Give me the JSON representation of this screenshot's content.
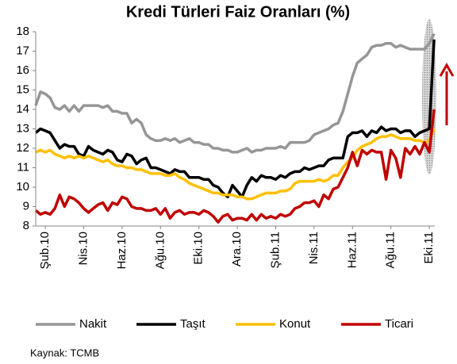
{
  "chart_data": {
    "type": "line",
    "title": "Kredi Türleri Faiz Oranları (%)",
    "source": "Kaynak: TCMB",
    "categories": [
      null,
      null,
      "Şub.10",
      null,
      null,
      null,
      null,
      null,
      null,
      null,
      "Nis.10",
      null,
      null,
      null,
      null,
      null,
      null,
      null,
      "Haz.10",
      null,
      null,
      null,
      null,
      null,
      null,
      null,
      "Ağu.10",
      null,
      null,
      null,
      null,
      null,
      null,
      null,
      "Eki.10",
      null,
      null,
      null,
      null,
      null,
      null,
      null,
      "Ara.10",
      null,
      null,
      null,
      null,
      null,
      null,
      null,
      "Şub.11",
      null,
      null,
      null,
      null,
      null,
      null,
      null,
      "Nis.11",
      null,
      null,
      null,
      null,
      null,
      null,
      null,
      "Haz.11",
      null,
      null,
      null,
      null,
      null,
      null,
      null,
      "Ağu.11",
      null,
      null,
      null,
      null,
      null,
      null,
      null,
      "Eki.11",
      null
    ],
    "series": [
      {
        "name": "Nakit",
        "color": "#969696",
        "values": [
          14.2,
          14.9,
          14.8,
          14.6,
          14.1,
          14.0,
          14.2,
          13.9,
          14.2,
          13.9,
          14.2,
          14.2,
          14.2,
          14.2,
          14.1,
          14.2,
          13.9,
          13.9,
          13.8,
          13.8,
          13.3,
          13.5,
          13.3,
          12.7,
          12.5,
          12.4,
          12.4,
          12.5,
          12.4,
          12.5,
          12.3,
          12.4,
          12.5,
          12.3,
          12.3,
          12.2,
          12.2,
          12.0,
          12.0,
          11.9,
          11.9,
          11.8,
          11.8,
          11.9,
          12.0,
          11.8,
          11.9,
          11.9,
          12.0,
          12.0,
          12.0,
          12.1,
          12.0,
          12.3,
          12.3,
          12.3,
          12.3,
          12.4,
          12.7,
          12.8,
          12.9,
          13.0,
          13.2,
          13.3,
          13.9,
          14.8,
          15.7,
          16.4,
          16.6,
          16.8,
          17.2,
          17.3,
          17.3,
          17.4,
          17.4,
          17.2,
          17.3,
          17.2,
          17.1,
          17.1,
          17.1,
          17.1,
          17.4,
          17.9
        ]
      },
      {
        "name": "Taşıt",
        "color": "#000000",
        "values": [
          12.8,
          13.0,
          12.9,
          12.8,
          12.4,
          12.0,
          12.2,
          12.1,
          12.1,
          11.7,
          11.6,
          12.1,
          11.9,
          11.8,
          11.7,
          11.9,
          11.8,
          11.4,
          11.3,
          11.7,
          11.6,
          11.2,
          11.4,
          11.5,
          11.0,
          11.0,
          10.9,
          10.8,
          10.7,
          10.9,
          10.8,
          10.8,
          10.5,
          10.5,
          10.5,
          10.4,
          10.4,
          10.1,
          10.0,
          9.7,
          9.5,
          10.1,
          9.8,
          9.5,
          10.1,
          10.5,
          10.3,
          10.6,
          10.5,
          10.5,
          10.4,
          10.6,
          10.5,
          10.7,
          10.8,
          10.8,
          11.0,
          10.9,
          11.0,
          11.1,
          11.1,
          11.4,
          11.5,
          11.5,
          11.5,
          12.6,
          12.8,
          12.8,
          12.9,
          12.6,
          12.9,
          12.8,
          13.1,
          12.9,
          13.0,
          13.0,
          12.8,
          12.9,
          12.9,
          12.6,
          12.8,
          12.9,
          13.0,
          17.6
        ]
      },
      {
        "name": "Konut",
        "color": "#ffc000",
        "values": [
          11.8,
          11.9,
          11.8,
          11.9,
          11.7,
          11.6,
          11.5,
          11.6,
          11.5,
          11.6,
          11.5,
          11.6,
          11.5,
          11.4,
          11.3,
          11.4,
          11.2,
          11.1,
          11.1,
          11.0,
          11.0,
          10.9,
          10.9,
          10.8,
          10.7,
          10.7,
          10.7,
          10.6,
          10.6,
          10.7,
          10.5,
          10.4,
          10.2,
          10.1,
          10.0,
          9.9,
          9.8,
          9.7,
          9.7,
          9.6,
          9.6,
          9.6,
          9.5,
          9.5,
          9.4,
          9.4,
          9.5,
          9.6,
          9.7,
          9.7,
          9.7,
          9.8,
          9.8,
          9.9,
          10.2,
          10.3,
          10.3,
          10.3,
          10.3,
          10.4,
          10.3,
          10.4,
          10.6,
          10.6,
          11.0,
          11.3,
          11.5,
          11.9,
          12.1,
          12.2,
          12.3,
          12.5,
          12.6,
          12.6,
          12.7,
          12.6,
          12.5,
          12.5,
          12.5,
          12.4,
          12.4,
          12.3,
          12.4,
          13.0
        ]
      },
      {
        "name": "Ticari",
        "color": "#c00000",
        "values": [
          8.8,
          8.6,
          8.7,
          8.6,
          8.9,
          9.6,
          9.0,
          9.5,
          9.4,
          9.2,
          8.9,
          8.7,
          8.9,
          9.1,
          9.2,
          8.8,
          9.2,
          9.1,
          9.5,
          9.4,
          9.0,
          8.9,
          8.9,
          8.8,
          8.8,
          8.9,
          8.6,
          8.9,
          8.4,
          8.7,
          8.8,
          8.6,
          8.7,
          8.7,
          8.6,
          8.8,
          8.7,
          8.5,
          8.2,
          8.5,
          8.6,
          8.3,
          8.4,
          8.4,
          8.3,
          8.6,
          8.3,
          8.6,
          8.4,
          8.5,
          8.4,
          8.6,
          8.5,
          8.6,
          8.9,
          9.0,
          9.2,
          9.2,
          9.3,
          9.0,
          9.6,
          9.4,
          9.9,
          10.0,
          10.5,
          11.0,
          11.8,
          11.1,
          11.9,
          11.7,
          11.9,
          11.8,
          11.8,
          10.4,
          11.9,
          11.5,
          10.5,
          12.0,
          11.7,
          12.1,
          11.7,
          12.3,
          11.8,
          14.0
        ]
      }
    ],
    "ylim": [
      8,
      18
    ],
    "yticks": [
      8,
      9,
      10,
      11,
      12,
      13,
      14,
      15,
      16,
      17,
      18
    ],
    "legend": "bottom"
  }
}
